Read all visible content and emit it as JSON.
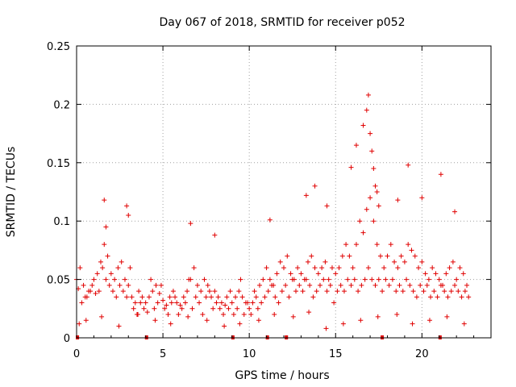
{
  "chart_data": {
    "type": "scatter",
    "title": "Day 067 of 2018, SRMTID for receiver p052",
    "xlabel": "GPS time / hours",
    "ylabel": "SRMTID / TECUs",
    "xlim": [
      0,
      24
    ],
    "ylim": [
      0,
      0.25
    ],
    "xticks": [
      0,
      5,
      10,
      15,
      20
    ],
    "xtick_labels": [
      "0",
      "5",
      "10",
      "15",
      "20"
    ],
    "yticks": [
      0,
      0.05,
      0.1,
      0.15,
      0.2,
      0.25
    ],
    "ytick_labels": [
      "0",
      "0.05",
      "0.1",
      "0.15",
      "0.2",
      "0.25"
    ],
    "grid": true,
    "marker": "+",
    "color": "#e00000",
    "baseline_marks_x": [
      0.05,
      4.05,
      9.05,
      11.05,
      12.15,
      17.7,
      21.05
    ],
    "series": [
      {
        "name": "SRMTID",
        "x": [
          0.0,
          0.2,
          0.4,
          0.6,
          0.8,
          1.0,
          1.2,
          1.4,
          1.6,
          1.8,
          2.0,
          2.2,
          2.4,
          2.6,
          2.8,
          3.0,
          3.2,
          3.4,
          3.6,
          3.8,
          4.0,
          4.2,
          4.4,
          4.6,
          4.8,
          5.0,
          5.2,
          5.4,
          5.6,
          5.8,
          6.0,
          6.2,
          6.4,
          6.6,
          6.8,
          7.0,
          7.2,
          7.4,
          7.6,
          7.8,
          8.0,
          8.2,
          8.4,
          8.6,
          8.8,
          9.0,
          9.2,
          9.4,
          9.6,
          9.8,
          10.0,
          10.2,
          10.4,
          10.6,
          10.8,
          11.0,
          11.2,
          11.4,
          11.6,
          11.8,
          12.0,
          12.2,
          12.4,
          12.6,
          12.8,
          13.0,
          13.2,
          13.4,
          13.6,
          13.8,
          14.0,
          14.2,
          14.4,
          14.6,
          14.8,
          15.0,
          15.2,
          15.4,
          15.6,
          15.8,
          16.0,
          16.2,
          16.4,
          16.6,
          16.8,
          17.0,
          17.2,
          17.4,
          17.6,
          17.8,
          18.0,
          18.2,
          18.4,
          18.6,
          18.8,
          19.0,
          19.2,
          19.4,
          19.6,
          19.8,
          20.0,
          20.2,
          20.4,
          20.6,
          20.8,
          21.0,
          21.2,
          21.4,
          21.6,
          21.8,
          22.0,
          22.2,
          22.4,
          22.6,
          0.1,
          0.3,
          0.5,
          0.7,
          0.9,
          1.1,
          1.3,
          1.5,
          1.7,
          1.9,
          2.1,
          2.3,
          2.5,
          2.7,
          2.9,
          3.1,
          3.3,
          3.5,
          3.7,
          3.9,
          4.1,
          4.3,
          4.5,
          4.7,
          4.9,
          5.1,
          5.3,
          5.5,
          5.7,
          5.9,
          6.1,
          6.3,
          6.5,
          6.7,
          6.9,
          7.1,
          7.3,
          7.5,
          7.7,
          7.9,
          8.1,
          8.3,
          8.5,
          8.7,
          8.9,
          9.1,
          9.3,
          9.5,
          9.7,
          9.9,
          10.1,
          10.3,
          10.5,
          10.7,
          10.9,
          11.1,
          11.3,
          11.5,
          11.7,
          11.9,
          12.1,
          12.3,
          12.5,
          12.7,
          12.9,
          13.1,
          13.3,
          13.5,
          13.7,
          13.9,
          14.1,
          14.3,
          14.5,
          14.7,
          14.9,
          15.1,
          15.3,
          15.5,
          15.7,
          15.9,
          16.1,
          16.3,
          16.5,
          16.7,
          16.9,
          17.1,
          17.3,
          17.5,
          17.7,
          17.9,
          18.1,
          18.3,
          18.5,
          18.7,
          18.9,
          19.1,
          19.3,
          19.5,
          19.7,
          19.9,
          20.1,
          20.3,
          20.5,
          20.7,
          20.9,
          21.1,
          21.3,
          21.5,
          21.7,
          21.9,
          22.1,
          22.3,
          22.5,
          22.7,
          1.6,
          1.7,
          2.9,
          3.0,
          6.6,
          8.0,
          11.2,
          13.3,
          13.8,
          14.5,
          15.9,
          16.2,
          16.6,
          16.8,
          16.9,
          17.0,
          17.1,
          17.2,
          17.3,
          17.4,
          17.5,
          18.6,
          19.2,
          20.0,
          21.1,
          21.9,
          0.15,
          0.55,
          1.45,
          2.45,
          3.55,
          4.55,
          5.45,
          6.45,
          7.55,
          8.55,
          9.45,
          10.55,
          11.45,
          12.55,
          13.45,
          14.45,
          15.45,
          16.45,
          17.45,
          18.55,
          19.45,
          20.45,
          21.45,
          22.45
        ],
        "y": [
          0.05,
          0.06,
          0.045,
          0.035,
          0.04,
          0.05,
          0.055,
          0.065,
          0.08,
          0.07,
          0.055,
          0.05,
          0.06,
          0.065,
          0.05,
          0.045,
          0.035,
          0.03,
          0.04,
          0.035,
          0.03,
          0.035,
          0.04,
          0.045,
          0.038,
          0.032,
          0.028,
          0.035,
          0.04,
          0.03,
          0.028,
          0.035,
          0.04,
          0.05,
          0.06,
          0.045,
          0.04,
          0.05,
          0.045,
          0.035,
          0.04,
          0.035,
          0.03,
          0.028,
          0.025,
          0.03,
          0.035,
          0.04,
          0.035,
          0.03,
          0.025,
          0.03,
          0.035,
          0.045,
          0.05,
          0.06,
          0.05,
          0.045,
          0.055,
          0.065,
          0.06,
          0.07,
          0.055,
          0.05,
          0.06,
          0.055,
          0.05,
          0.065,
          0.07,
          0.06,
          0.055,
          0.06,
          0.065,
          0.05,
          0.06,
          0.055,
          0.06,
          0.07,
          0.08,
          0.07,
          0.06,
          0.08,
          0.1,
          0.09,
          0.11,
          0.12,
          0.1,
          0.08,
          0.07,
          0.06,
          0.07,
          0.08,
          0.065,
          0.06,
          0.07,
          0.065,
          0.08,
          0.075,
          0.07,
          0.06,
          0.065,
          0.055,
          0.05,
          0.06,
          0.055,
          0.05,
          0.045,
          0.055,
          0.06,
          0.065,
          0.05,
          0.06,
          0.055,
          0.045,
          0.042,
          0.03,
          0.035,
          0.04,
          0.045,
          0.038,
          0.04,
          0.06,
          0.05,
          0.045,
          0.04,
          0.035,
          0.045,
          0.04,
          0.035,
          0.06,
          0.025,
          0.02,
          0.03,
          0.025,
          0.022,
          0.05,
          0.025,
          0.03,
          0.045,
          0.025,
          0.02,
          0.03,
          0.035,
          0.02,
          0.025,
          0.03,
          0.05,
          0.025,
          0.035,
          0.03,
          0.02,
          0.035,
          0.04,
          0.025,
          0.03,
          0.025,
          0.02,
          0.035,
          0.04,
          0.02,
          0.025,
          0.05,
          0.02,
          0.03,
          0.02,
          0.04,
          0.025,
          0.03,
          0.035,
          0.04,
          0.045,
          0.035,
          0.03,
          0.04,
          0.045,
          0.035,
          0.05,
          0.04,
          0.045,
          0.04,
          0.05,
          0.045,
          0.035,
          0.04,
          0.045,
          0.05,
          0.04,
          0.045,
          0.03,
          0.04,
          0.045,
          0.04,
          0.05,
          0.045,
          0.05,
          0.04,
          0.045,
          0.05,
          0.06,
          0.05,
          0.045,
          0.05,
          0.04,
          0.05,
          0.045,
          0.05,
          0.04,
          0.045,
          0.04,
          0.05,
          0.045,
          0.04,
          0.035,
          0.045,
          0.04,
          0.045,
          0.035,
          0.04,
          0.035,
          0.045,
          0.04,
          0.035,
          0.04,
          0.045,
          0.04,
          0.035,
          0.04,
          0.035,
          0.118,
          0.095,
          0.113,
          0.105,
          0.098,
          0.088,
          0.101,
          0.122,
          0.13,
          0.113,
          0.146,
          0.165,
          0.182,
          0.195,
          0.208,
          0.175,
          0.16,
          0.145,
          0.13,
          0.125,
          0.113,
          0.118,
          0.148,
          0.12,
          0.14,
          0.108,
          0.012,
          0.015,
          0.018,
          0.01,
          0.02,
          0.015,
          0.012,
          0.018,
          0.015,
          0.01,
          0.012,
          0.015,
          0.02,
          0.018,
          0.022,
          0.008,
          0.012,
          0.015,
          0.018,
          0.02,
          0.012,
          0.015,
          0.018,
          0.012
        ]
      }
    ]
  }
}
